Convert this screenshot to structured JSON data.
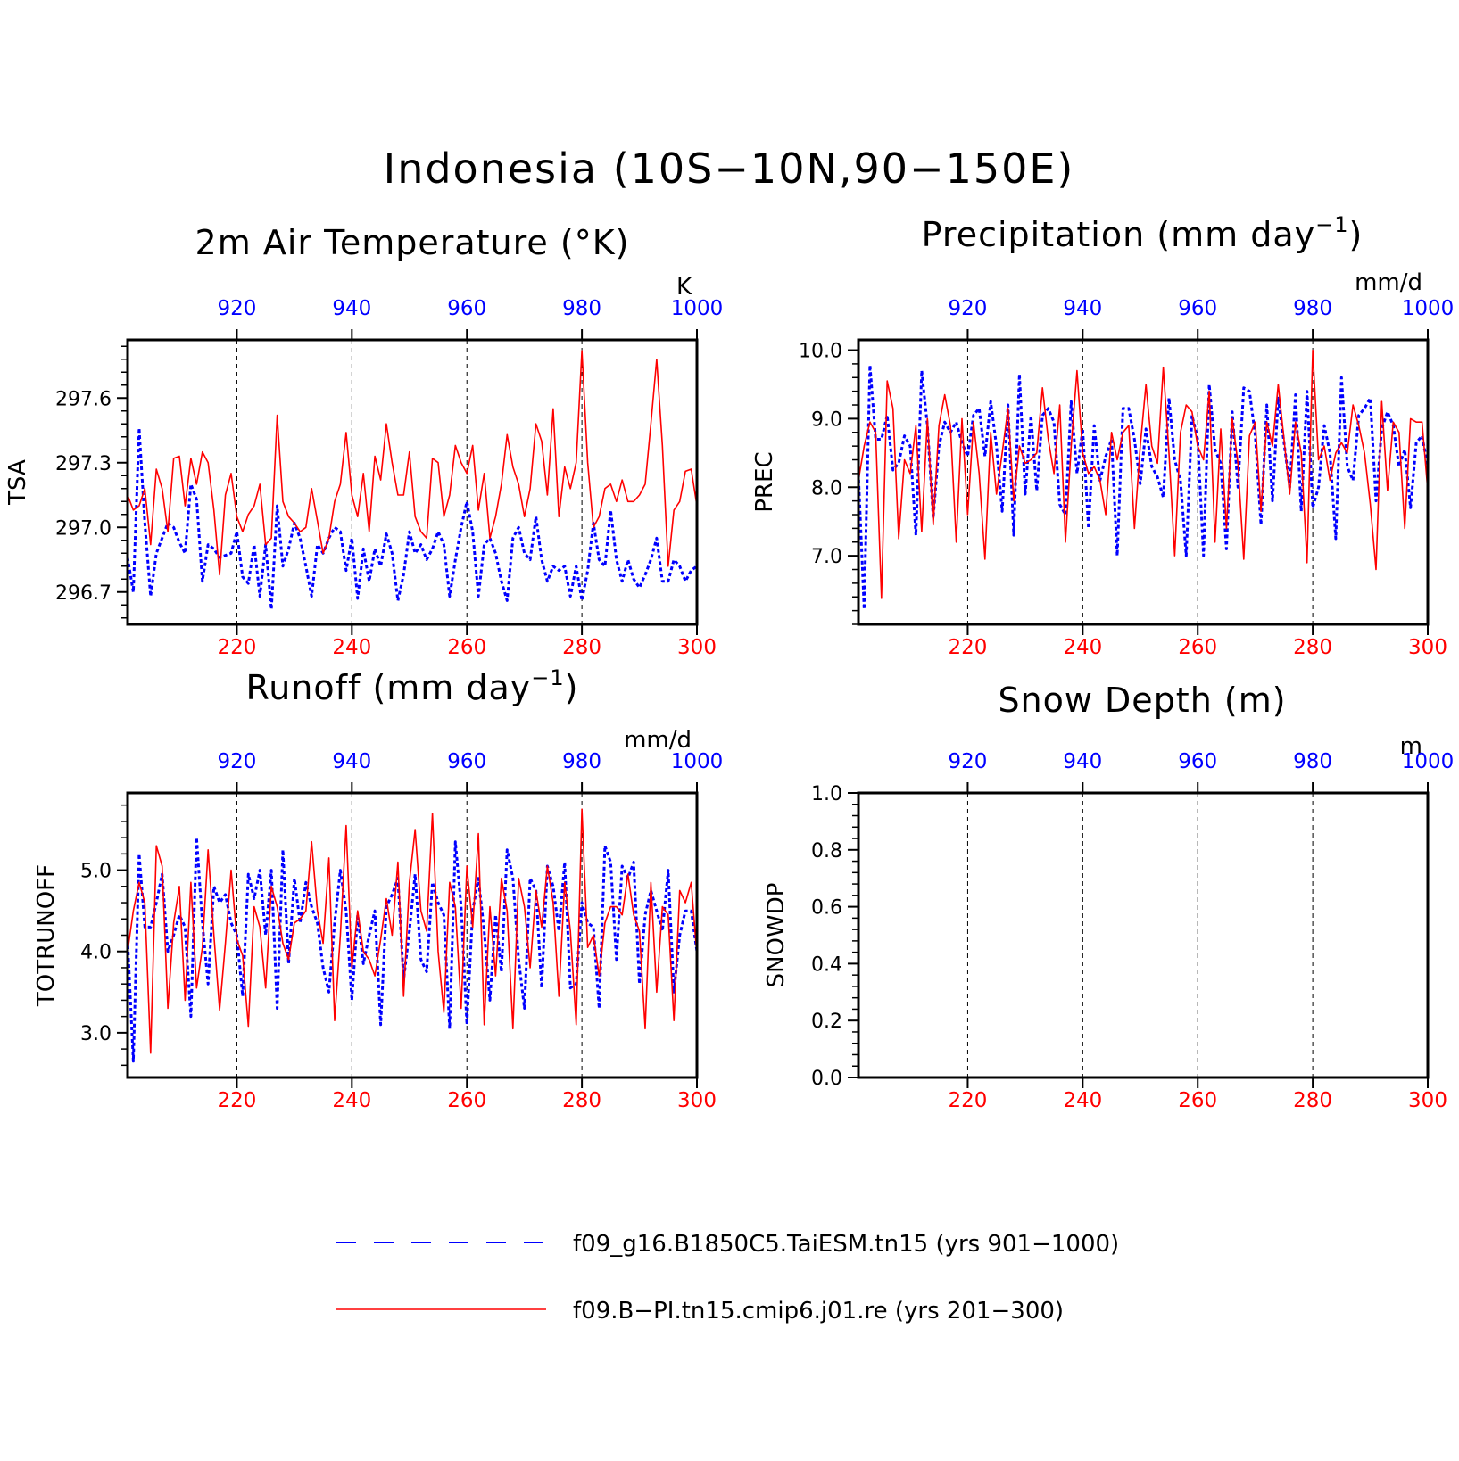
{
  "title": "Indonesia (10S−10N,90−150E)",
  "legend": {
    "entries": [
      {
        "label": "f09_g16.B1850C5.TaiESM.tn15 (yrs 901−1000)",
        "color": "#0000ff",
        "style": "dashed"
      },
      {
        "label": "f09.B−PI.tn15.cmip6.j01.re (yrs 201−300)",
        "color": "#ff0000",
        "style": "solid"
      }
    ]
  },
  "chart_data": [
    {
      "type": "line",
      "title": "2m Air Temperature (°K)",
      "ylabel": "TSA",
      "unit": "K",
      "ylim": [
        296.55,
        297.87
      ],
      "yticks": [
        296.7,
        297.0,
        297.3,
        297.6
      ],
      "ytick_labels": [
        "296.7",
        "297.0",
        "297.3",
        "297.6"
      ],
      "bottom_axis": {
        "range": [
          201,
          300
        ],
        "ticks": [
          220,
          240,
          260,
          280,
          300
        ],
        "labels": [
          "220",
          "240",
          "260",
          "280",
          "300"
        ]
      },
      "top_axis": {
        "range": [
          901,
          1000
        ],
        "ticks": [
          920,
          940,
          960,
          980,
          1000
        ],
        "labels": [
          "920",
          "940",
          "960",
          "980",
          "1000"
        ]
      },
      "grid": "dashed vertical at ticks",
      "series": [
        {
          "values": [
            297.15,
            297.08,
            297.1,
            297.18,
            296.92,
            297.27,
            297.18,
            296.98,
            297.32,
            297.33,
            297.1,
            297.32,
            297.2,
            297.35,
            297.3,
            297.08,
            296.78,
            297.15,
            297.25,
            297.05,
            296.98,
            297.06,
            297.1,
            297.2,
            296.92,
            296.95,
            297.52,
            297.12,
            297.05,
            297.02,
            296.98,
            297.0,
            297.18,
            297.03,
            296.88,
            296.95,
            297.12,
            297.2,
            297.44,
            297.15,
            297.05,
            297.25,
            296.98,
            297.33,
            297.22,
            297.48,
            297.3,
            297.15,
            297.15,
            297.35,
            297.05,
            296.98,
            296.95,
            297.32,
            297.3,
            297.05,
            297.15,
            297.38,
            297.3,
            297.25,
            297.38,
            297.08,
            297.25,
            296.95,
            297.05,
            297.2,
            297.43,
            297.28,
            297.2,
            297.05,
            297.18,
            297.48,
            297.4,
            297.15,
            297.55,
            297.05,
            297.28,
            297.18,
            297.3,
            297.82,
            297.3,
            297.0,
            297.05,
            297.18,
            297.2,
            297.12,
            297.22,
            297.12,
            297.12,
            297.15,
            297.2,
            297.48,
            297.78,
            297.38,
            296.82,
            297.08,
            297.12,
            297.26,
            297.27,
            297.1
          ]
        },
        {
          "values": [
            296.86,
            296.7,
            297.46,
            297.02,
            296.68,
            296.88,
            296.95,
            297.02,
            297.0,
            296.93,
            296.88,
            297.2,
            297.13,
            296.75,
            296.92,
            296.9,
            296.86,
            296.87,
            296.88,
            296.98,
            296.77,
            296.74,
            296.92,
            296.68,
            296.92,
            296.62,
            297.1,
            296.82,
            296.9,
            297.02,
            296.95,
            296.82,
            296.68,
            296.92,
            296.88,
            296.95,
            297.0,
            296.98,
            296.8,
            296.95,
            296.67,
            296.9,
            296.75,
            296.9,
            296.82,
            296.97,
            296.88,
            296.66,
            296.78,
            296.98,
            296.88,
            296.92,
            296.85,
            296.9,
            296.98,
            296.92,
            296.68,
            296.85,
            297.0,
            297.12,
            296.98,
            296.68,
            296.92,
            296.95,
            296.88,
            296.75,
            296.66,
            296.95,
            297.0,
            296.88,
            296.85,
            297.05,
            296.85,
            296.75,
            296.82,
            296.8,
            296.82,
            296.68,
            296.82,
            296.66,
            296.8,
            297.02,
            296.85,
            296.82,
            297.08,
            296.85,
            296.75,
            296.85,
            296.76,
            296.72,
            296.78,
            296.85,
            296.95,
            296.75,
            296.75,
            296.85,
            296.82,
            296.75,
            296.8,
            296.82
          ]
        }
      ]
    },
    {
      "type": "line",
      "title": "Precipitation (mm day",
      "title_sup": "−1",
      "title_tail": ")",
      "ylabel": "PREC",
      "unit": "mm/d",
      "ylim": [
        6.0,
        10.15
      ],
      "yticks": [
        7.0,
        8.0,
        9.0,
        10.0
      ],
      "ytick_labels": [
        "7.0",
        "8.0",
        "9.0",
        "10.0"
      ],
      "bottom_axis": {
        "range": [
          201,
          300
        ],
        "ticks": [
          220,
          240,
          260,
          280,
          300
        ],
        "labels": [
          "220",
          "240",
          "260",
          "280",
          "300"
        ]
      },
      "top_axis": {
        "range": [
          901,
          1000
        ],
        "ticks": [
          920,
          940,
          960,
          980,
          1000
        ],
        "labels": [
          "920",
          "940",
          "960",
          "980",
          "1000"
        ]
      },
      "grid": "dashed vertical at ticks",
      "series": [
        {
          "values": [
            8.1,
            8.6,
            8.95,
            8.8,
            6.38,
            9.55,
            9.15,
            7.25,
            8.4,
            8.2,
            8.9,
            7.35,
            9.0,
            7.45,
            8.9,
            9.35,
            8.9,
            7.2,
            9.0,
            7.6,
            8.95,
            8.2,
            6.95,
            8.8,
            7.9,
            8.5,
            9.15,
            7.8,
            8.6,
            8.35,
            8.4,
            8.5,
            9.45,
            8.7,
            8.2,
            9.2,
            7.2,
            8.6,
            9.7,
            8.5,
            8.2,
            8.3,
            8.1,
            7.6,
            8.8,
            8.4,
            8.8,
            8.9,
            7.4,
            8.6,
            9.5,
            8.6,
            8.35,
            9.75,
            8.5,
            7.0,
            8.8,
            9.2,
            9.1,
            8.6,
            8.4,
            9.4,
            7.2,
            8.85,
            7.4,
            9.0,
            8.35,
            6.95,
            8.75,
            8.95,
            7.65,
            8.95,
            8.6,
            9.5,
            8.7,
            7.9,
            8.95,
            8.5,
            6.9,
            10.0,
            8.4,
            8.6,
            8.1,
            8.5,
            8.65,
            8.5,
            9.2,
            8.9,
            8.5,
            7.75,
            6.8,
            9.25,
            7.95,
            8.95,
            8.8,
            7.4,
            9.0,
            8.95,
            8.95,
            7.95
          ]
        },
        {
          "values": [
            8.2,
            6.22,
            9.78,
            8.7,
            8.7,
            9.05,
            8.25,
            8.35,
            8.75,
            8.6,
            7.3,
            9.7,
            8.9,
            7.55,
            8.6,
            8.95,
            8.8,
            8.95,
            8.65,
            8.45,
            9.05,
            9.15,
            8.45,
            9.25,
            8.6,
            7.65,
            9.2,
            7.3,
            9.65,
            7.9,
            9.05,
            7.95,
            9.05,
            9.15,
            8.95,
            7.75,
            7.6,
            9.25,
            8.2,
            8.85,
            7.4,
            8.9,
            8.1,
            8.45,
            8.7,
            7.0,
            9.15,
            9.15,
            8.7,
            8.05,
            8.85,
            8.3,
            8.15,
            7.85,
            9.3,
            8.4,
            8.1,
            7.0,
            9.05,
            8.7,
            7.0,
            9.5,
            8.55,
            8.35,
            7.1,
            9.1,
            8.0,
            9.45,
            9.4,
            8.75,
            7.45,
            9.2,
            7.8,
            9.3,
            8.65,
            8.0,
            9.35,
            7.65,
            9.4,
            7.7,
            8.0,
            8.9,
            8.5,
            7.25,
            9.6,
            8.3,
            8.1,
            9.05,
            9.15,
            9.3,
            7.8,
            8.85,
            9.1,
            8.9,
            8.3,
            8.55,
            7.7,
            8.65,
            8.75,
            8.3
          ]
        }
      ]
    },
    {
      "type": "line",
      "title": "Runoff (mm day",
      "title_sup": "−1",
      "title_tail": ")",
      "ylabel": "TOTRUNOFF",
      "unit": "mm/d",
      "ylim": [
        2.45,
        5.95
      ],
      "yticks": [
        3.0,
        4.0,
        5.0
      ],
      "ytick_labels": [
        "3.0",
        "4.0",
        "5.0"
      ],
      "bottom_axis": {
        "range": [
          201,
          300
        ],
        "ticks": [
          220,
          240,
          260,
          280,
          300
        ],
        "labels": [
          "220",
          "240",
          "260",
          "280",
          "300"
        ]
      },
      "top_axis": {
        "range": [
          901,
          1000
        ],
        "ticks": [
          920,
          940,
          960,
          980,
          1000
        ],
        "labels": [
          "920",
          "940",
          "960",
          "980",
          "1000"
        ]
      },
      "grid": "dashed vertical at ticks",
      "series": [
        {
          "values": [
            4.0,
            4.5,
            4.85,
            4.6,
            2.75,
            5.3,
            5.05,
            3.3,
            4.35,
            4.8,
            3.4,
            4.85,
            3.55,
            4.05,
            5.25,
            4.2,
            3.28,
            4.1,
            5.0,
            4.15,
            3.95,
            3.08,
            4.55,
            4.3,
            3.55,
            4.8,
            4.55,
            4.1,
            3.9,
            4.35,
            4.4,
            4.5,
            5.35,
            4.5,
            4.1,
            5.15,
            3.15,
            4.2,
            5.55,
            3.8,
            4.5,
            4.0,
            3.9,
            3.7,
            4.15,
            4.65,
            4.2,
            5.1,
            3.45,
            4.85,
            5.5,
            4.5,
            4.25,
            5.7,
            4.0,
            3.25,
            4.85,
            4.55,
            3.3,
            5.05,
            4.3,
            5.45,
            3.1,
            4.55,
            3.7,
            4.9,
            4.5,
            3.05,
            4.9,
            4.55,
            3.8,
            4.75,
            4.3,
            5.05,
            4.6,
            3.45,
            4.85,
            4.25,
            3.1,
            5.75,
            4.05,
            4.2,
            3.7,
            4.35,
            4.55,
            4.55,
            4.45,
            4.95,
            4.45,
            4.25,
            3.05,
            4.85,
            3.5,
            4.55,
            4.45,
            3.15,
            4.75,
            4.6,
            4.85,
            3.95
          ]
        },
        {
          "values": [
            4.15,
            2.65,
            5.2,
            4.3,
            4.3,
            4.6,
            4.95,
            4.0,
            4.2,
            4.45,
            4.3,
            3.2,
            5.4,
            4.35,
            3.6,
            4.8,
            4.6,
            4.7,
            4.35,
            4.2,
            3.45,
            4.95,
            4.65,
            5.0,
            4.2,
            5.0,
            3.3,
            5.25,
            3.85,
            4.9,
            4.35,
            4.85,
            4.55,
            4.35,
            3.8,
            3.5,
            4.35,
            5.0,
            4.5,
            3.4,
            4.45,
            3.85,
            4.2,
            4.5,
            3.1,
            4.55,
            4.7,
            4.9,
            3.65,
            4.25,
            4.95,
            3.9,
            3.75,
            4.85,
            4.6,
            4.45,
            3.05,
            5.35,
            4.55,
            3.1,
            4.5,
            4.9,
            4.25,
            3.4,
            4.45,
            3.75,
            5.25,
            4.9,
            3.9,
            3.3,
            4.9,
            4.75,
            3.55,
            5.05,
            4.8,
            4.25,
            5.1,
            3.55,
            3.6,
            4.6,
            4.35,
            4.3,
            3.3,
            5.3,
            5.1,
            3.9,
            5.05,
            4.9,
            5.1,
            3.6,
            4.45,
            4.75,
            4.5,
            4.25,
            5.0,
            3.5,
            4.2,
            4.5,
            4.5,
            4.0
          ]
        }
      ]
    },
    {
      "type": "line",
      "title": "Snow Depth (m)",
      "ylabel": "SNOWDP",
      "unit": "m",
      "ylim": [
        0.0,
        1.0
      ],
      "yticks": [
        0.0,
        0.2,
        0.4,
        0.6,
        0.8,
        1.0
      ],
      "ytick_labels": [
        "0.0",
        "0.2",
        "0.4",
        "0.6",
        "0.8",
        "1.0"
      ],
      "bottom_axis": {
        "range": [
          201,
          300
        ],
        "ticks": [
          220,
          240,
          260,
          280,
          300
        ],
        "labels": [
          "220",
          "240",
          "260",
          "280",
          "300"
        ]
      },
      "top_axis": {
        "range": [
          901,
          1000
        ],
        "ticks": [
          920,
          940,
          960,
          980,
          1000
        ],
        "labels": [
          "920",
          "940",
          "960",
          "980",
          "1000"
        ]
      },
      "grid": "dashed vertical at ticks",
      "series": []
    }
  ]
}
